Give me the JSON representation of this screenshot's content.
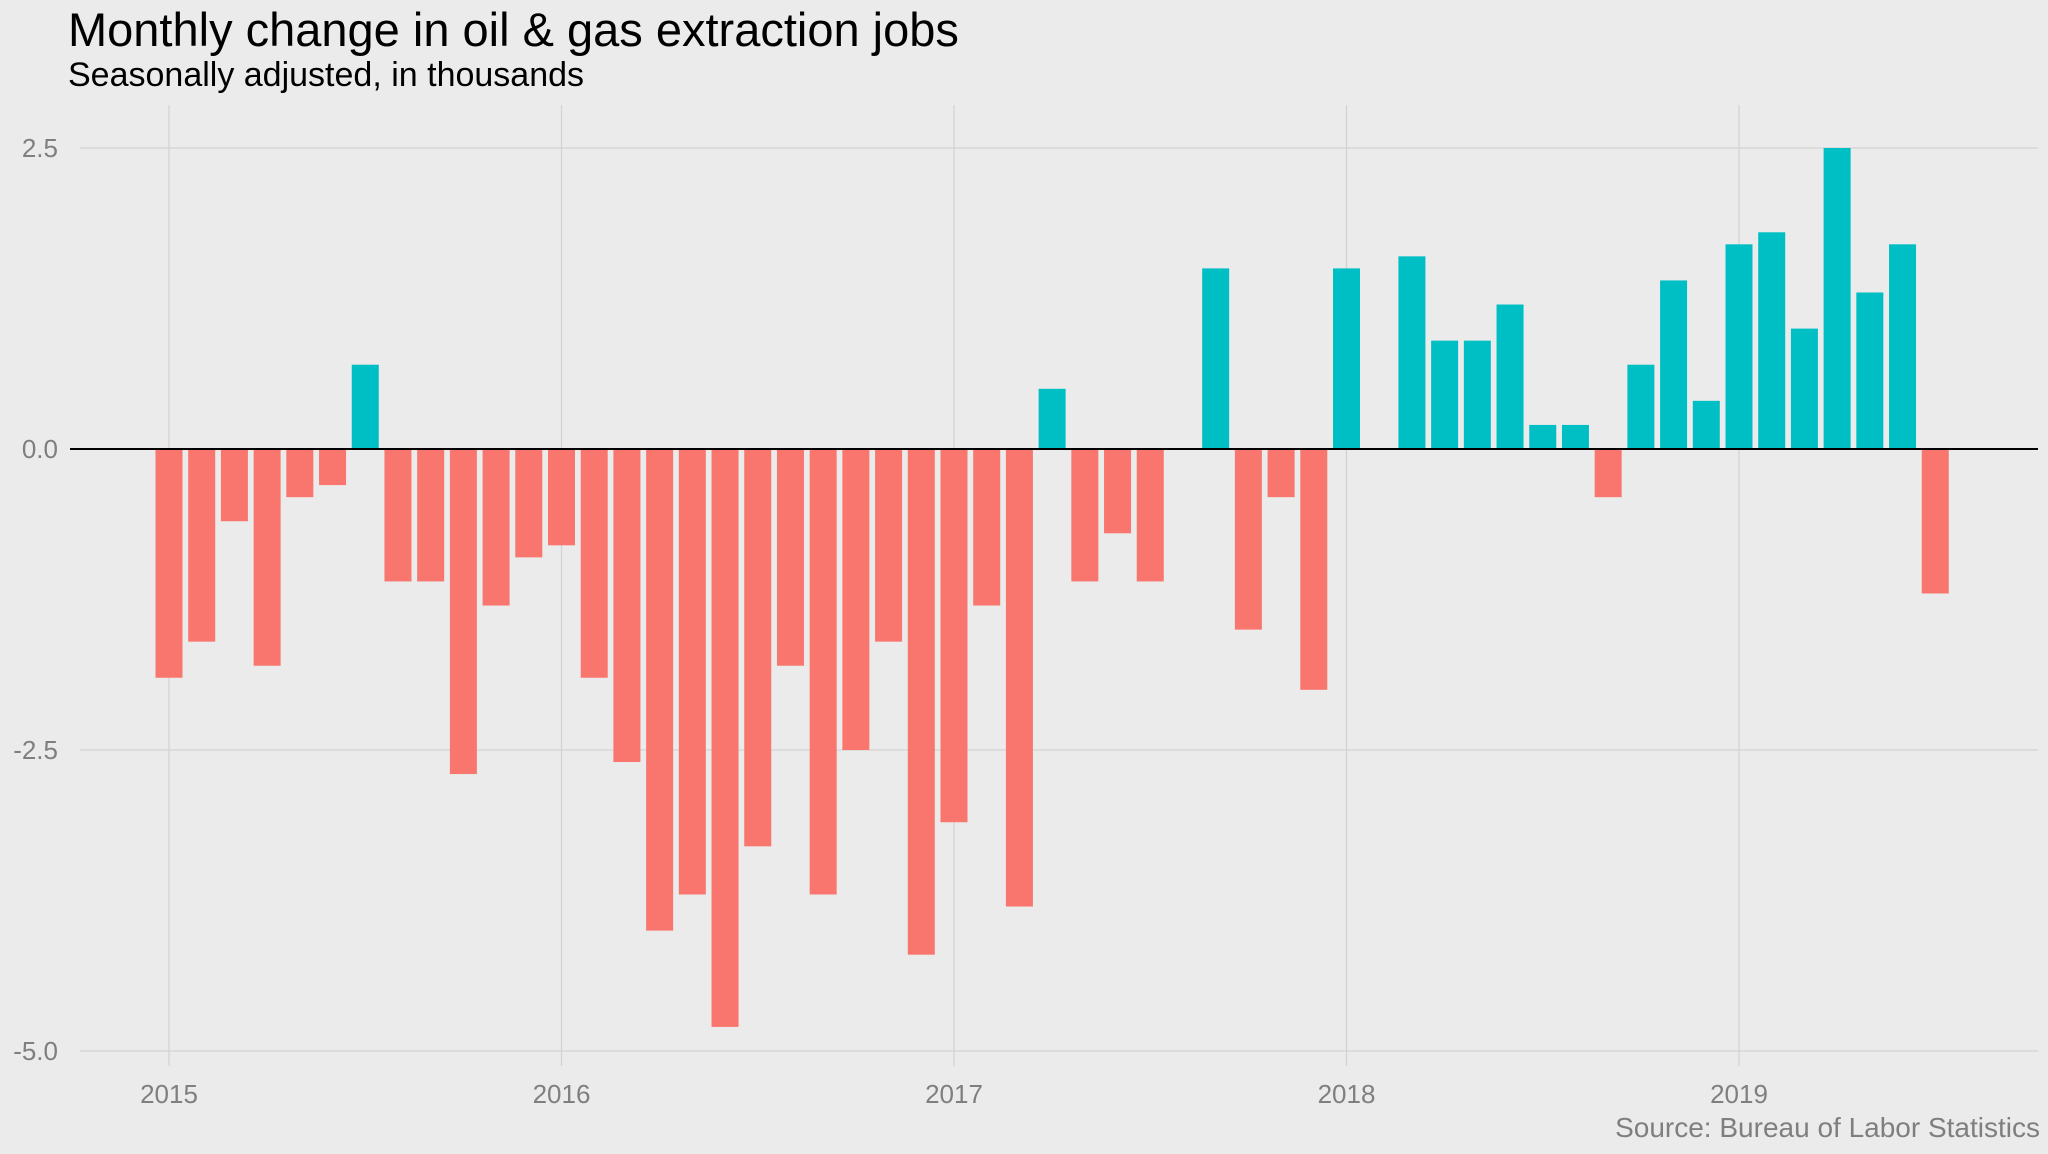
{
  "chart_data": {
    "type": "bar",
    "title": "Monthly change in oil & gas extraction jobs",
    "subtitle": "Seasonally adjusted, in thousands",
    "source": "Source: Bureau of Labor Statistics",
    "xlabel": "",
    "ylabel": "",
    "x_start": "2015-01",
    "x_tick_labels": [
      "2015",
      "2016",
      "2017",
      "2018",
      "2019"
    ],
    "y_tick_labels": [
      "2.5",
      "0.0",
      "-2.5",
      "-5.0"
    ],
    "yticks": [
      2.5,
      0,
      -2.5,
      -5
    ],
    "ylim": [
      -5.0,
      2.5
    ],
    "grid": true,
    "colors": {
      "positive": "#00bfc4",
      "negative": "#f8766d",
      "zero_line": "#000000",
      "grid": "#d2d2d2"
    },
    "values": [
      -1.9,
      -1.6,
      -0.6,
      -1.8,
      -0.4,
      -0.3,
      0.7,
      -1.1,
      -1.1,
      -2.7,
      -1.3,
      -0.9,
      -0.8,
      -1.9,
      -2.6,
      -4.0,
      -3.7,
      -4.8,
      -3.3,
      -1.8,
      -3.7,
      -2.5,
      -1.6,
      -4.2,
      -3.1,
      -1.3,
      -3.8,
      0.5,
      -1.1,
      -0.7,
      -1.1,
      0.0,
      1.5,
      -1.5,
      -0.4,
      -2.0,
      1.5,
      0.0,
      1.6,
      0.9,
      0.9,
      1.2,
      0.2,
      0.2,
      -0.4,
      0.7,
      1.4,
      0.4,
      1.7,
      1.8,
      1.0,
      2.5,
      1.3,
      1.7,
      -1.2
    ]
  }
}
